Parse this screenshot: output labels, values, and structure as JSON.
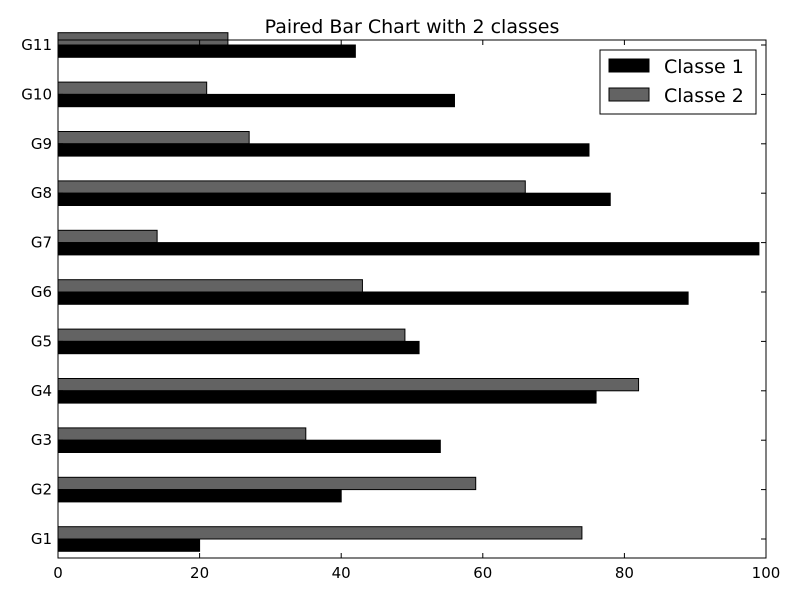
{
  "chart_data": {
    "type": "bar",
    "orientation": "horizontal",
    "title": "Paired Bar Chart with 2 classes",
    "xlabel": "",
    "ylabel": "",
    "xlim": [
      0,
      100
    ],
    "x_ticks": [
      0,
      20,
      40,
      60,
      80,
      100
    ],
    "categories": [
      "G1",
      "G2",
      "G3",
      "G4",
      "G5",
      "G6",
      "G7",
      "G8",
      "G9",
      "G10",
      "G11"
    ],
    "series": [
      {
        "name": "Classe 1",
        "color": "#000000",
        "values": [
          20,
          40,
          54,
          76,
          51,
          89,
          99,
          78,
          75,
          56,
          42
        ]
      },
      {
        "name": "Classe 2",
        "color": "#636363",
        "values": [
          74,
          59,
          35,
          82,
          49,
          43,
          14,
          66,
          27,
          21,
          24
        ]
      }
    ],
    "legend_position": "top-right",
    "grid": false
  }
}
